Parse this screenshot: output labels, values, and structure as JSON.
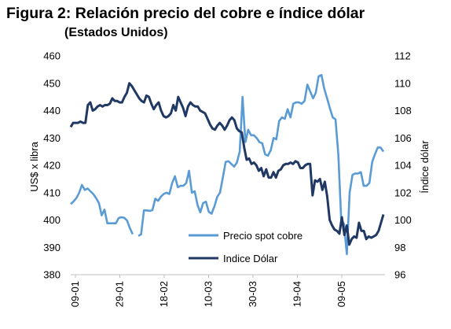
{
  "title": "Figura 2: Relación precio del cobre e índice dólar",
  "subtitle": "(Estados Unidos)",
  "chart_data": {
    "type": "line",
    "ylabel_left": "US$ x libra",
    "ylabel_right": "Índice dólar",
    "ylim_left": [
      380,
      460
    ],
    "ylim_right": [
      96,
      112
    ],
    "yticks_left": [
      "460",
      "450",
      "440",
      "430",
      "420",
      "410",
      "400",
      "390",
      "380"
    ],
    "yticks_right": [
      "112",
      "110",
      "108",
      "106",
      "104",
      "102",
      "100",
      "98",
      "96"
    ],
    "xticks": [
      "09-01",
      "29-01",
      "18-02",
      "10-03",
      "30-03",
      "19-04",
      "09-05"
    ],
    "legend": [
      "Precio spot cobre",
      "Indice Dólar"
    ],
    "series": [
      {
        "name": "Precio spot cobre",
        "axis": "left",
        "color": "#5b9bd5",
        "values": [
          405.8,
          406.8,
          408.0,
          410.0,
          412.8,
          411.0,
          411.5,
          410.5,
          409.5,
          408.0,
          406.2,
          401.7,
          403.8,
          398.8,
          398.8,
          398.8,
          398.8,
          400.7,
          401.0,
          400.8,
          399.8,
          397.0,
          394.8,
          null,
          394.2,
          394.8,
          403.5,
          403.5,
          403.3,
          403.6,
          407.8,
          407.0,
          408.5,
          409.5,
          410.0,
          409.5,
          413.5,
          416.0,
          412.0,
          412.5,
          412.5,
          413.5,
          418.0,
          410.0,
          410.5,
          405.5,
          402.8,
          406.2,
          406.7,
          403.0,
          402.3,
          405.0,
          408.5,
          410.0,
          415.5,
          421.2,
          421.5,
          420.5,
          419.5,
          421.0,
          425.0,
          445.0,
          428.5,
          433.0,
          431.0,
          431.0,
          430.0,
          428.5,
          428.0,
          424.0,
          423.5,
          425.5,
          430.0,
          429.5,
          436.2,
          437.5,
          437.0,
          440.5,
          437.5,
          442.5,
          443.0,
          443.0,
          442.5,
          443.5,
          449.5,
          447.0,
          444.5,
          446.5,
          452.5,
          453.0,
          448.0,
          444.5,
          440.8,
          437.5,
          436.8,
          424.0,
          400.5,
          398.5,
          387.5,
          410.0,
          416.5,
          417.0,
          417.0,
          417.5,
          412.5,
          412.5,
          413.5,
          421.2,
          424.0,
          426.5,
          426.5,
          425.0
        ],
        "values_right": null
      },
      {
        "name": "Indice Dólar",
        "axis": "right",
        "color": "#1f3864",
        "values": [
          106.8,
          107.1,
          107.1,
          107.1,
          107.2,
          107.1,
          107.1,
          108.4,
          108.6,
          108.0,
          108.1,
          108.3,
          108.4,
          108.3,
          108.4,
          108.4,
          108.5,
          108.9,
          108.7,
          108.7,
          108.6,
          108.6,
          109.0,
          109.3,
          110.0,
          109.8,
          109.5,
          109.2,
          108.9,
          108.7,
          108.6,
          109.1,
          109.0,
          108.5,
          108.1,
          108.4,
          108.6,
          108.0,
          107.6,
          107.5,
          107.6,
          107.8,
          108.4,
          108.0,
          109.0,
          108.6,
          108.2,
          107.6,
          108.3,
          108.6,
          108.4,
          108.3,
          108.3,
          108.0,
          107.9,
          107.8,
          107.4,
          107.0,
          106.7,
          106.6,
          106.9,
          107.1,
          106.9,
          106.6,
          106.9,
          107.3,
          107.5,
          107.3,
          106.7,
          106.5,
          106.4,
          105.3,
          104.4,
          104.5,
          104.1,
          104.2,
          104.0,
          103.6,
          103.8,
          103.2,
          103.7,
          103.1,
          103.1,
          103.5,
          103.1,
          103.6,
          103.7,
          104.0,
          104.1,
          104.1,
          104.2,
          104.1,
          104.3,
          104.2,
          103.8,
          103.8,
          104.0,
          104.1,
          104.1,
          101.8,
          102.9,
          102.8,
          103.0,
          102.2,
          102.8,
          101.7,
          100.0,
          99.6,
          99.3,
          99.2,
          99.0,
          100.2,
          98.9,
          99.6,
          98.2,
          98.6,
          98.8,
          98.7,
          99.8,
          99.2,
          99.2,
          98.6,
          98.8,
          98.7,
          98.8,
          98.9,
          99.2,
          99.8,
          100.4
        ]
      }
    ],
    "grid": false,
    "legend_position": "inside-bottom-center"
  }
}
